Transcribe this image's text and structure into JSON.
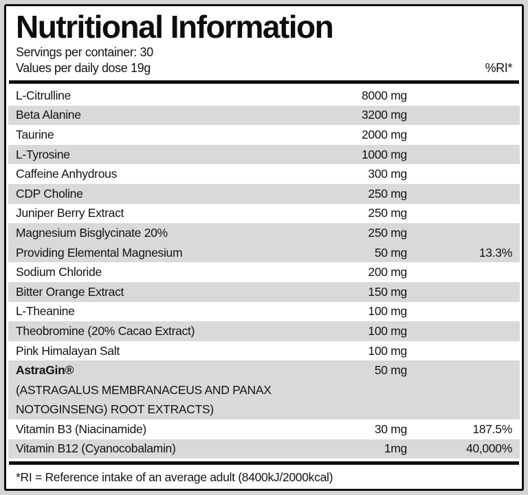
{
  "header": {
    "title": "Nutritional Information",
    "servings_line": "Servings per container: 30",
    "dose_line": "Values per daily dose 19g",
    "ri_column_header": "%RI*"
  },
  "rows": [
    {
      "name": "L-Citrulline",
      "amount": "8000 mg",
      "ri": "",
      "shade": false,
      "bold": false,
      "sub_lines": []
    },
    {
      "name": "Beta Alanine",
      "amount": "3200 mg",
      "ri": "",
      "shade": true,
      "bold": false,
      "sub_lines": []
    },
    {
      "name": "Taurine",
      "amount": "2000 mg",
      "ri": "",
      "shade": false,
      "bold": false,
      "sub_lines": []
    },
    {
      "name": "L-Tyrosine",
      "amount": "1000 mg",
      "ri": "",
      "shade": true,
      "bold": false,
      "sub_lines": []
    },
    {
      "name": "Caffeine Anhydrous",
      "amount": "300 mg",
      "ri": "",
      "shade": false,
      "bold": false,
      "sub_lines": []
    },
    {
      "name": "CDP Choline",
      "amount": "250 mg",
      "ri": "",
      "shade": true,
      "bold": false,
      "sub_lines": []
    },
    {
      "name": "Juniper Berry Extract",
      "amount": "250 mg",
      "ri": "",
      "shade": false,
      "bold": false,
      "sub_lines": []
    },
    {
      "name": "Magnesium Bisglycinate 20%",
      "amount": "250 mg",
      "ri": "",
      "shade": true,
      "bold": false,
      "sub_lines": []
    },
    {
      "name": "Providing Elemental Magnesium",
      "amount": "50 mg",
      "ri": "13.3%",
      "shade": true,
      "bold": false,
      "sub_lines": []
    },
    {
      "name": "Sodium Chloride",
      "amount": "200 mg",
      "ri": "",
      "shade": false,
      "bold": false,
      "sub_lines": []
    },
    {
      "name": "Bitter Orange Extract",
      "amount": "150 mg",
      "ri": "",
      "shade": true,
      "bold": false,
      "sub_lines": []
    },
    {
      "name": "L-Theanine",
      "amount": "100 mg",
      "ri": "",
      "shade": false,
      "bold": false,
      "sub_lines": []
    },
    {
      "name": "Theobromine (20% Cacao Extract)",
      "amount": "100 mg",
      "ri": "",
      "shade": true,
      "bold": false,
      "sub_lines": []
    },
    {
      "name": "Pink Himalayan Salt",
      "amount": "100 mg",
      "ri": "",
      "shade": false,
      "bold": false,
      "sub_lines": []
    },
    {
      "name": "AstraGin®",
      "amount": "50 mg",
      "ri": "",
      "shade": true,
      "bold": true,
      "sub_lines": [
        "(ASTRAGALUS MEMBRANACEUS AND PANAX",
        "NOTOGINSENG) ROOT EXTRACTS)"
      ]
    },
    {
      "name": "Vitamin B3 (Niacinamide)",
      "amount": "30 mg",
      "ri": "187.5%",
      "shade": false,
      "bold": false,
      "sub_lines": []
    },
    {
      "name": "Vitamin B12 (Cyanocobalamin)",
      "amount": "1mg",
      "ri": "40,000%",
      "shade": true,
      "bold": false,
      "sub_lines": []
    }
  ],
  "footer": {
    "note": "*RI = Reference intake of an average adult (8400kJ/2000kcal)"
  },
  "colors": {
    "panel_background": "#ffffff",
    "page_background": "#d5d5d5",
    "row_band": "#d9d9d9",
    "border_and_text": "#0d0d0d"
  }
}
